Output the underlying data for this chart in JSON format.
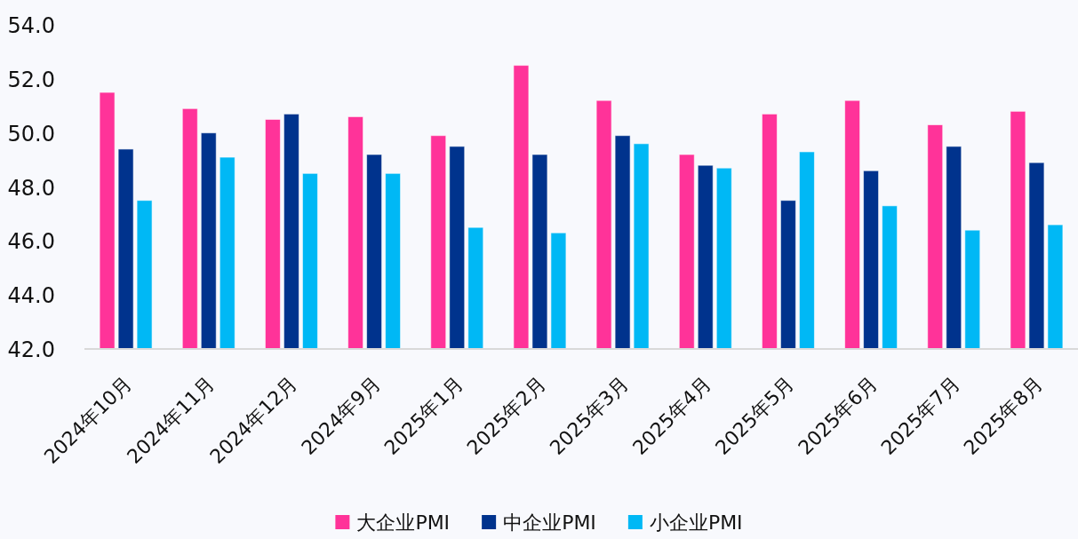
{
  "chart_data": {
    "type": "bar",
    "categories": [
      "2024年10月",
      "2024年11月",
      "2024年12月",
      "2024年9月",
      "2025年1月",
      "2025年2月",
      "2025年3月",
      "2025年4月",
      "2025年5月",
      "2025年6月",
      "2025年7月",
      "2025年8月"
    ],
    "series": [
      {
        "name": "大企业PMI",
        "color": "#ff3399",
        "values": [
          51.5,
          50.9,
          50.5,
          50.6,
          49.9,
          52.5,
          51.2,
          49.2,
          50.7,
          51.2,
          50.3,
          50.8
        ]
      },
      {
        "name": "中企业PMI",
        "color": "#00338d",
        "values": [
          49.4,
          50.0,
          50.7,
          49.2,
          49.5,
          49.2,
          49.9,
          48.8,
          47.5,
          48.6,
          49.5,
          48.9
        ]
      },
      {
        "name": "小企业PMI",
        "color": "#00b8f5",
        "values": [
          47.5,
          49.1,
          48.5,
          48.5,
          46.5,
          46.3,
          49.6,
          48.7,
          49.3,
          47.3,
          46.4,
          46.6
        ]
      }
    ],
    "ylim": [
      42,
      54
    ],
    "yticks": [
      {
        "value": 42,
        "label": "42.0"
      },
      {
        "value": 44,
        "label": "44.0"
      },
      {
        "value": 46,
        "label": "46.0"
      },
      {
        "value": 48,
        "label": "48.0"
      },
      {
        "value": 50,
        "label": "50.0"
      },
      {
        "value": 52,
        "label": "52.0"
      },
      {
        "value": 54,
        "label": "54.0"
      }
    ],
    "legend": "bottom"
  }
}
